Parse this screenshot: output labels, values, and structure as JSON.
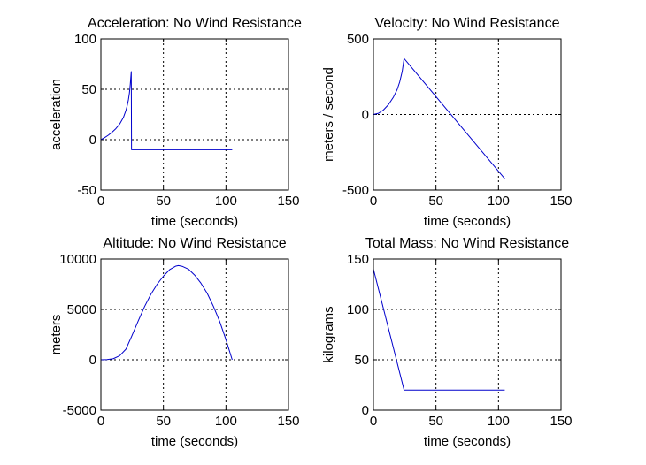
{
  "chart_data": [
    {
      "type": "line",
      "title": "Acceleration: No Wind Resistance",
      "xlabel": "time (seconds)",
      "ylabel": "acceleration",
      "xlim": [
        0,
        150
      ],
      "ylim": [
        -50,
        100
      ],
      "xticks": [
        "0",
        "50",
        "100",
        "150"
      ],
      "yticks": [
        "-50",
        "0",
        "50",
        "100"
      ],
      "grid": true,
      "line_color": "#0000cc",
      "series": [
        {
          "x": [
            0,
            3,
            6,
            9,
            12,
            15,
            18,
            20,
            21,
            22,
            22.8,
            23.5,
            24,
            24.3,
            24.5,
            105
          ],
          "y": [
            0,
            2,
            4.5,
            7.5,
            11,
            15.5,
            22,
            29,
            33.5,
            39.5,
            46,
            55,
            63,
            67.5,
            -10,
            -10
          ]
        }
      ]
    },
    {
      "type": "line",
      "title": "Velocity: No Wind Resistance",
      "xlabel": "time (seconds)",
      "ylabel": "meters / second",
      "xlim": [
        0,
        150
      ],
      "ylim": [
        -500,
        500
      ],
      "xticks": [
        "0",
        "50",
        "100",
        "150"
      ],
      "yticks": [
        "-500",
        "0",
        "500"
      ],
      "grid": true,
      "line_color": "#0000cc",
      "series": [
        {
          "x": [
            0,
            4,
            8,
            12,
            16,
            19,
            21,
            23,
            24.5,
            105
          ],
          "y": [
            0,
            8,
            30,
            65,
            115,
            165,
            215,
            285,
            370,
            -425
          ]
        }
      ]
    },
    {
      "type": "line",
      "title": "Altitude: No Wind Resistance",
      "xlabel": "time (seconds)",
      "ylabel": "meters",
      "xlim": [
        0,
        150
      ],
      "ylim": [
        -5000,
        10000
      ],
      "xticks": [
        "0",
        "50",
        "100",
        "150"
      ],
      "yticks": [
        "-5000",
        "0",
        "5000",
        "10000"
      ],
      "grid": true,
      "line_color": "#0000cc",
      "series": [
        {
          "x": [
            0,
            5,
            10,
            15,
            20,
            24.5,
            30,
            35,
            40,
            45,
            50,
            55,
            60,
            62,
            65,
            70,
            75,
            80,
            85,
            90,
            95,
            100,
            103,
            105
          ],
          "y": [
            0,
            20,
            110,
            400,
            1050,
            2300,
            3900,
            5300,
            6500,
            7500,
            8300,
            8950,
            9300,
            9350,
            9280,
            9000,
            8400,
            7600,
            6600,
            5300,
            3800,
            2000,
            800,
            0
          ]
        }
      ]
    },
    {
      "type": "line",
      "title": "Total Mass: No Wind Resistance",
      "xlabel": "time (seconds)",
      "ylabel": "kilograms",
      "xlim": [
        0,
        150
      ],
      "ylim": [
        0,
        150
      ],
      "xticks": [
        "0",
        "50",
        "100",
        "150"
      ],
      "yticks": [
        "0",
        "50",
        "100",
        "150"
      ],
      "grid": true,
      "line_color": "#0000cc",
      "series": [
        {
          "x": [
            0,
            24.5,
            105
          ],
          "y": [
            140,
            20,
            20
          ]
        }
      ]
    }
  ]
}
